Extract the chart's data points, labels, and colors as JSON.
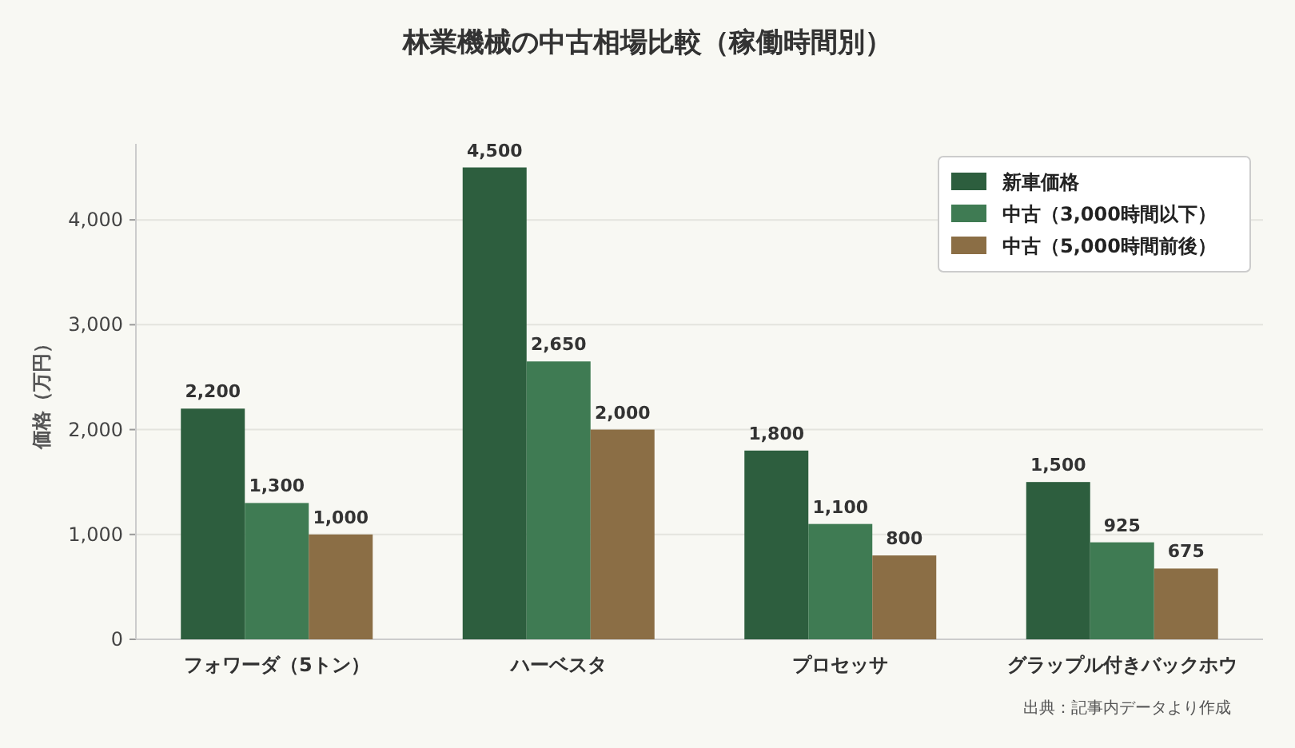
{
  "chart_data": {
    "type": "bar",
    "title": "林業機械の中古相場比較（稼働時間別）",
    "ylabel": "価格（万円）",
    "categories": [
      "フォワーダ（5トン）",
      "ハーベスタ",
      "プロセッサ",
      "グラップル付きバックホウ"
    ],
    "series": [
      {
        "name": "新車価格",
        "color": "#2d5e3e",
        "values": [
          2200,
          4500,
          1800,
          1500
        ],
        "value_labels": [
          "2,200",
          "4,500",
          "1,800",
          "1,500"
        ]
      },
      {
        "name": "中古（3,000時間以下）",
        "color": "#3f7b53",
        "values": [
          1300,
          2650,
          1100,
          925
        ],
        "value_labels": [
          "1,300",
          "2,650",
          "1,100",
          "925"
        ]
      },
      {
        "name": "中古（5,000時間前後）",
        "color": "#8b6e45",
        "values": [
          1000,
          2000,
          800,
          675
        ],
        "value_labels": [
          "1,000",
          "2,000",
          "800",
          "675"
        ]
      }
    ],
    "ylim": [
      0,
      4725
    ],
    "yticks": [
      0,
      {
        "value": 1000,
        "label": "1,000"
      },
      {
        "value": 2000,
        "label": "2,000"
      },
      {
        "value": 3000,
        "label": "3,000"
      },
      {
        "value": 4000,
        "label": "4,000"
      }
    ],
    "grid": "y",
    "legend": "top right",
    "annotations": [
      "出典：記事内データより作成"
    ]
  }
}
